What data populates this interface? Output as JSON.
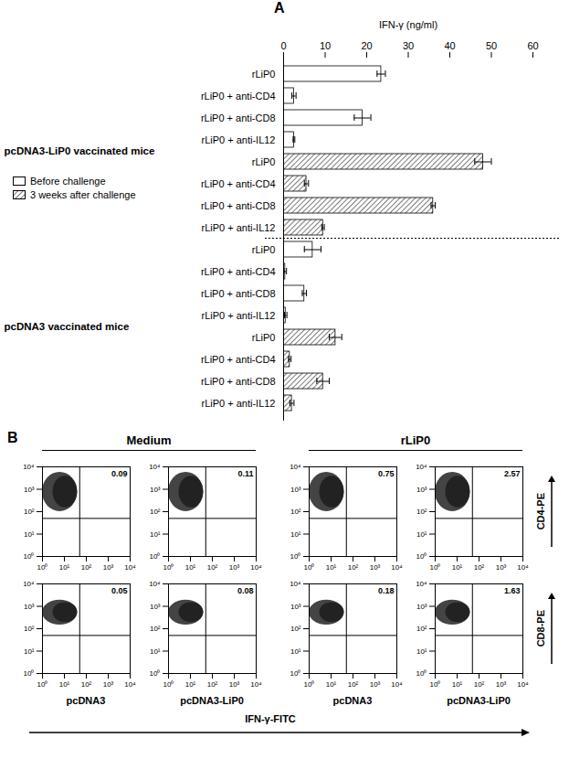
{
  "chart_data": [
    {
      "type": "bar",
      "orientation": "horizontal",
      "title": "A",
      "xlabel": "IFN-γ (ng/ml)",
      "xlim": [
        0,
        60
      ],
      "xticks": [
        0,
        10,
        20,
        30,
        40,
        50,
        60
      ],
      "legend": "left",
      "categories": [
        "rLiP0",
        "rLiP0 + anti-CD4",
        "rLiP0 + anti-CD8",
        "rLiP0 + anti-IL12"
      ],
      "groups": [
        {
          "name": "pcDNA3-LiP0 vaccinated mice",
          "series": [
            {
              "name": "Before challenge",
              "color": "#ffffff",
              "values": [
                23.5,
                2.5,
                19,
                2.5
              ],
              "errors": [
                1,
                0.5,
                2,
                0.2
              ]
            },
            {
              "name": "3 weeks after challenge",
              "color": "#333333",
              "values": [
                48,
                5.5,
                36,
                9.5
              ],
              "errors": [
                2,
                0.5,
                0.5,
                0.3
              ]
            }
          ]
        },
        {
          "name": "pcDNA3 vaccinated mice",
          "series": [
            {
              "name": "Before challenge",
              "color": "#ffffff",
              "values": [
                7,
                0.4,
                5,
                0.5
              ],
              "errors": [
                2,
                0.3,
                0.5,
                0.3
              ]
            },
            {
              "name": "3 weeks after challenge",
              "color": "#333333",
              "values": [
                12.5,
                1.5,
                9.5,
                2
              ],
              "errors": [
                1.5,
                0.3,
                1.5,
                0.5
              ]
            }
          ]
        }
      ]
    },
    {
      "type": "scatter",
      "title": "B",
      "log": true,
      "xlabel": "IFN-γ-FITC",
      "xlim": [
        1,
        10000
      ],
      "ylim": [
        1,
        10000
      ],
      "xticks": [
        {
          "value": 1,
          "label": "10⁰"
        },
        {
          "value": 10,
          "label": "10¹"
        },
        {
          "value": 100,
          "label": "10²"
        },
        {
          "value": 1000,
          "label": "10³"
        },
        {
          "value": 10000,
          "label": "10⁴"
        }
      ],
      "yticks": [
        {
          "value": 1,
          "label": "10⁰"
        },
        {
          "value": 10,
          "label": "10¹"
        },
        {
          "value": 100,
          "label": "10²"
        },
        {
          "value": 1000,
          "label": "10³"
        },
        {
          "value": 10000,
          "label": "10⁴"
        }
      ],
      "gates": {
        "x": 50,
        "y": 50
      },
      "conditions": [
        "Medium",
        "rLiP0"
      ],
      "vaccines": [
        "pcDNA3",
        "pcDNA3-LiP0"
      ],
      "rows": [
        {
          "ylabel": "CD4-PE",
          "percentages": [
            0.09,
            0.11,
            0.75,
            2.57
          ]
        },
        {
          "ylabel": "CD8-PE",
          "percentages": [
            0.05,
            0.08,
            0.18,
            1.63
          ]
        }
      ]
    }
  ]
}
